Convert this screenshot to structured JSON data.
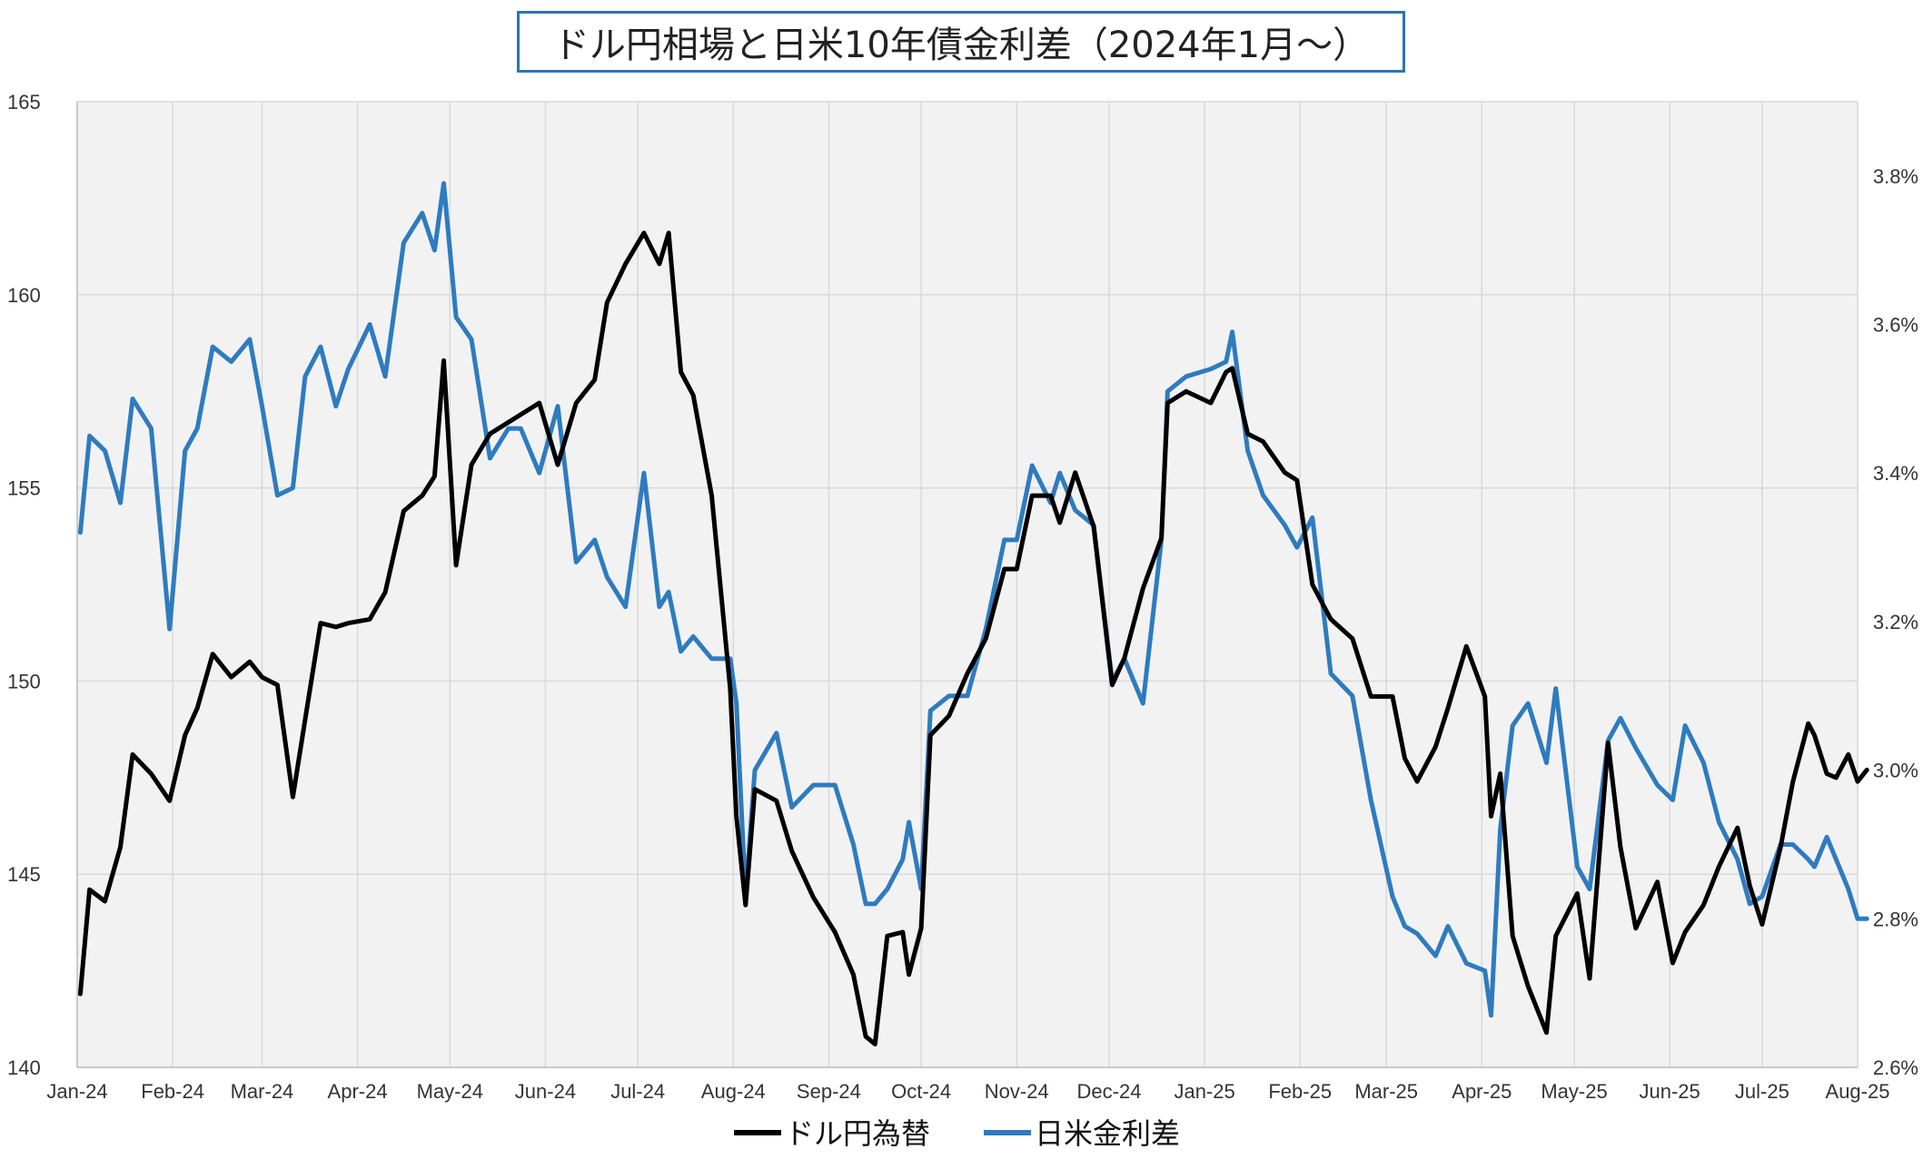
{
  "chart_data": {
    "type": "line",
    "title": "ドル円相場と日米10年債金利差（2024年1月～）",
    "x_ticks": [
      "Jan-24",
      "Feb-24",
      "Mar-24",
      "Apr-24",
      "May-24",
      "Jun-24",
      "Jul-24",
      "Aug-24",
      "Sep-24",
      "Oct-24",
      "Nov-24",
      "Dec-24",
      "Jan-25",
      "Feb-25",
      "Mar-25",
      "Apr-25",
      "May-25",
      "Jun-25",
      "Jul-25",
      "Aug-25"
    ],
    "y_left": {
      "ticks": [
        "140",
        "145",
        "150",
        "155",
        "160",
        "165"
      ],
      "ylim": [
        140,
        165
      ]
    },
    "y_right": {
      "ticks": [
        "2.6%",
        "2.8%",
        "3.0%",
        "3.2%",
        "3.4%",
        "3.6%",
        "3.8%"
      ],
      "ylim": [
        2.6,
        3.9
      ]
    },
    "grid": true,
    "legend_position": "bottom",
    "series": [
      {
        "name": "ドル円為替",
        "axis": "left",
        "color": "#000000",
        "x": [
          "2024-01-02",
          "2024-01-05",
          "2024-01-10",
          "2024-01-15",
          "2024-01-19",
          "2024-01-25",
          "2024-01-31",
          "2024-02-05",
          "2024-02-09",
          "2024-02-14",
          "2024-02-20",
          "2024-02-26",
          "2024-03-01",
          "2024-03-06",
          "2024-03-11",
          "2024-03-15",
          "2024-03-20",
          "2024-03-25",
          "2024-03-29",
          "2024-04-05",
          "2024-04-10",
          "2024-04-16",
          "2024-04-22",
          "2024-04-26",
          "2024-04-29",
          "2024-05-03",
          "2024-05-08",
          "2024-05-14",
          "2024-05-20",
          "2024-05-24",
          "2024-05-30",
          "2024-06-05",
          "2024-06-11",
          "2024-06-17",
          "2024-06-21",
          "2024-06-27",
          "2024-07-03",
          "2024-07-08",
          "2024-07-11",
          "2024-07-15",
          "2024-07-19",
          "2024-07-25",
          "2024-07-31",
          "2024-08-02",
          "2024-08-05",
          "2024-08-08",
          "2024-08-15",
          "2024-08-20",
          "2024-08-27",
          "2024-09-03",
          "2024-09-09",
          "2024-09-13",
          "2024-09-16",
          "2024-09-20",
          "2024-09-25",
          "2024-09-27",
          "2024-10-01",
          "2024-10-04",
          "2024-10-10",
          "2024-10-16",
          "2024-10-22",
          "2024-10-28",
          "2024-11-01",
          "2024-11-06",
          "2024-11-12",
          "2024-11-15",
          "2024-11-20",
          "2024-11-26",
          "2024-12-02",
          "2024-12-06",
          "2024-12-12",
          "2024-12-18",
          "2024-12-20",
          "2024-12-26",
          "2025-01-03",
          "2025-01-08",
          "2025-01-10",
          "2025-01-15",
          "2025-01-20",
          "2025-01-27",
          "2025-01-31",
          "2025-02-05",
          "2025-02-11",
          "2025-02-18",
          "2025-02-24",
          "2025-03-03",
          "2025-03-07",
          "2025-03-11",
          "2025-03-17",
          "2025-03-21",
          "2025-03-27",
          "2025-04-02",
          "2025-04-04",
          "2025-04-07",
          "2025-04-11",
          "2025-04-16",
          "2025-04-22",
          "2025-04-25",
          "2025-05-02",
          "2025-05-06",
          "2025-05-12",
          "2025-05-16",
          "2025-05-21",
          "2025-05-28",
          "2025-06-02",
          "2025-06-06",
          "2025-06-12",
          "2025-06-17",
          "2025-06-23",
          "2025-06-27",
          "2025-07-01",
          "2025-07-07",
          "2025-07-11",
          "2025-07-16",
          "2025-07-18",
          "2025-07-22",
          "2025-07-25",
          "2025-07-29",
          "2025-08-01",
          "2025-08-04"
        ],
        "values": [
          141.9,
          144.6,
          144.3,
          145.7,
          148.1,
          147.6,
          146.9,
          148.6,
          149.3,
          150.7,
          150.1,
          150.5,
          150.1,
          149.9,
          147.0,
          149.0,
          151.5,
          151.4,
          151.5,
          151.6,
          152.3,
          154.4,
          154.8,
          155.3,
          158.3,
          153.0,
          155.6,
          156.4,
          156.7,
          156.9,
          157.2,
          155.6,
          157.2,
          157.8,
          159.8,
          160.8,
          161.6,
          160.8,
          161.6,
          158.0,
          157.4,
          154.8,
          149.8,
          146.5,
          144.2,
          147.2,
          146.9,
          145.6,
          144.4,
          143.5,
          142.4,
          140.8,
          140.6,
          143.4,
          143.5,
          142.4,
          143.6,
          148.6,
          149.1,
          150.2,
          151.1,
          152.9,
          152.9,
          154.8,
          154.8,
          154.1,
          155.4,
          154.0,
          149.9,
          150.6,
          152.4,
          153.7,
          157.2,
          157.5,
          157.2,
          158.0,
          158.1,
          156.4,
          156.2,
          155.4,
          155.2,
          152.5,
          151.6,
          151.1,
          149.6,
          149.6,
          148.0,
          147.4,
          148.3,
          149.3,
          150.9,
          149.6,
          146.5,
          147.6,
          143.4,
          142.1,
          140.9,
          143.4,
          144.5,
          142.3,
          148.4,
          145.7,
          143.6,
          144.8,
          142.7,
          143.5,
          144.2,
          145.2,
          146.2,
          144.7,
          143.7,
          145.7,
          147.4,
          148.9,
          148.6,
          147.6,
          147.5,
          148.1,
          147.4,
          147.7
        ]
      },
      {
        "name": "日米金利差",
        "axis": "right",
        "color": "#2e7bbf",
        "x": [
          "2024-01-02",
          "2024-01-05",
          "2024-01-10",
          "2024-01-15",
          "2024-01-19",
          "2024-01-25",
          "2024-01-31",
          "2024-02-05",
          "2024-02-09",
          "2024-02-14",
          "2024-02-20",
          "2024-02-26",
          "2024-03-01",
          "2024-03-06",
          "2024-03-11",
          "2024-03-15",
          "2024-03-20",
          "2024-03-25",
          "2024-03-29",
          "2024-04-05",
          "2024-04-10",
          "2024-04-16",
          "2024-04-22",
          "2024-04-26",
          "2024-04-29",
          "2024-05-03",
          "2024-05-08",
          "2024-05-14",
          "2024-05-20",
          "2024-05-24",
          "2024-05-30",
          "2024-06-05",
          "2024-06-11",
          "2024-06-17",
          "2024-06-21",
          "2024-06-27",
          "2024-07-03",
          "2024-07-08",
          "2024-07-11",
          "2024-07-15",
          "2024-07-19",
          "2024-07-25",
          "2024-07-31",
          "2024-08-02",
          "2024-08-05",
          "2024-08-08",
          "2024-08-15",
          "2024-08-20",
          "2024-08-27",
          "2024-09-03",
          "2024-09-09",
          "2024-09-13",
          "2024-09-16",
          "2024-09-20",
          "2024-09-25",
          "2024-09-27",
          "2024-10-01",
          "2024-10-04",
          "2024-10-10",
          "2024-10-16",
          "2024-10-22",
          "2024-10-28",
          "2024-11-01",
          "2024-11-06",
          "2024-11-12",
          "2024-11-15",
          "2024-11-20",
          "2024-11-26",
          "2024-12-02",
          "2024-12-06",
          "2024-12-12",
          "2024-12-18",
          "2024-12-20",
          "2024-12-26",
          "2025-01-03",
          "2025-01-08",
          "2025-01-10",
          "2025-01-15",
          "2025-01-20",
          "2025-01-27",
          "2025-01-31",
          "2025-02-05",
          "2025-02-11",
          "2025-02-18",
          "2025-02-24",
          "2025-03-03",
          "2025-03-07",
          "2025-03-11",
          "2025-03-17",
          "2025-03-21",
          "2025-03-27",
          "2025-04-02",
          "2025-04-04",
          "2025-04-07",
          "2025-04-11",
          "2025-04-16",
          "2025-04-22",
          "2025-04-25",
          "2025-05-02",
          "2025-05-06",
          "2025-05-12",
          "2025-05-16",
          "2025-05-21",
          "2025-05-28",
          "2025-06-02",
          "2025-06-06",
          "2025-06-12",
          "2025-06-17",
          "2025-06-23",
          "2025-06-27",
          "2025-07-01",
          "2025-07-07",
          "2025-07-11",
          "2025-07-16",
          "2025-07-18",
          "2025-07-22",
          "2025-07-25",
          "2025-07-29",
          "2025-08-01",
          "2025-08-04"
        ],
        "values": [
          3.32,
          3.45,
          3.43,
          3.36,
          3.5,
          3.46,
          3.19,
          3.43,
          3.46,
          3.57,
          3.55,
          3.58,
          3.49,
          3.37,
          3.38,
          3.53,
          3.57,
          3.49,
          3.54,
          3.6,
          3.53,
          3.71,
          3.75,
          3.7,
          3.79,
          3.61,
          3.58,
          3.42,
          3.46,
          3.46,
          3.4,
          3.49,
          3.28,
          3.31,
          3.26,
          3.22,
          3.4,
          3.22,
          3.24,
          3.16,
          3.18,
          3.15,
          3.15,
          3.09,
          2.83,
          3.0,
          3.05,
          2.95,
          2.98,
          2.98,
          2.9,
          2.82,
          2.82,
          2.84,
          2.88,
          2.93,
          2.84,
          3.08,
          3.1,
          3.1,
          3.19,
          3.31,
          3.31,
          3.41,
          3.36,
          3.4,
          3.35,
          3.33,
          3.12,
          3.15,
          3.09,
          3.31,
          3.51,
          3.53,
          3.54,
          3.55,
          3.59,
          3.43,
          3.37,
          3.33,
          3.3,
          3.34,
          3.13,
          3.1,
          2.96,
          2.83,
          2.79,
          2.78,
          2.75,
          2.79,
          2.74,
          2.73,
          2.67,
          2.92,
          3.06,
          3.09,
          3.01,
          3.11,
          2.87,
          2.84,
          3.04,
          3.07,
          3.03,
          2.98,
          2.96,
          3.06,
          3.01,
          2.93,
          2.88,
          2.82,
          2.83,
          2.9,
          2.9,
          2.88,
          2.87,
          2.91,
          2.88,
          2.84,
          2.8,
          2.8
        ]
      }
    ]
  }
}
